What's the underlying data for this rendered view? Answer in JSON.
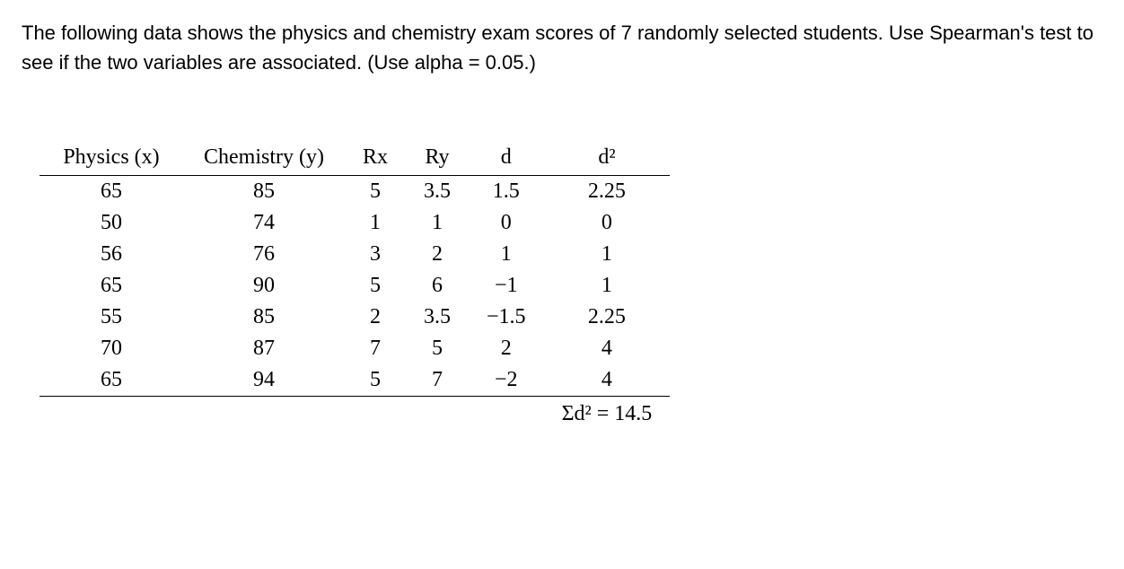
{
  "intro": "The following data shows the physics and chemistry exam scores of 7 randomly selected students. Use Spearman's test to see if the two variables are associated. (Use alpha = 0.05.)",
  "table": {
    "headers": {
      "physics": "Physics (x)",
      "chemistry": "Chemistry (y)",
      "rx": "Rx",
      "ry": "Ry",
      "d": "d",
      "d2": "d²"
    },
    "rows": [
      {
        "physics": "65",
        "chemistry": "85",
        "rx": "5",
        "ry": "3.5",
        "d": "1.5",
        "d2": "2.25"
      },
      {
        "physics": "50",
        "chemistry": "74",
        "rx": "1",
        "ry": "1",
        "d": "0",
        "d2": "0"
      },
      {
        "physics": "56",
        "chemistry": "76",
        "rx": "3",
        "ry": "2",
        "d": "1",
        "d2": "1"
      },
      {
        "physics": "65",
        "chemistry": "90",
        "rx": "5",
        "ry": "6",
        "d": "−1",
        "d2": "1"
      },
      {
        "physics": "55",
        "chemistry": "85",
        "rx": "2",
        "ry": "3.5",
        "d": "−1.5",
        "d2": "2.25"
      },
      {
        "physics": "70",
        "chemistry": "87",
        "rx": "7",
        "ry": "5",
        "d": "2",
        "d2": "4"
      },
      {
        "physics": "65",
        "chemistry": "94",
        "rx": "5",
        "ry": "7",
        "d": "−2",
        "d2": "4"
      }
    ],
    "sum_label": "Σd² = 14.5"
  },
  "styling": {
    "body_font": "Arial",
    "table_font": "Times New Roman",
    "intro_fontsize": 22,
    "table_fontsize": 24,
    "text_color": "#000000",
    "background_color": "#ffffff",
    "border_color": "#000000",
    "border_width": 1.5
  }
}
